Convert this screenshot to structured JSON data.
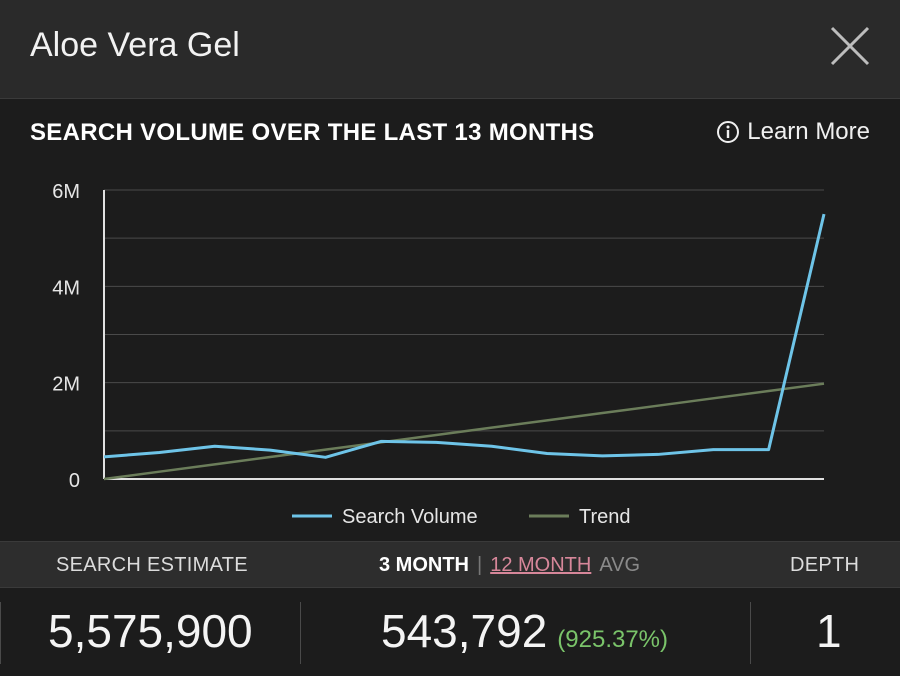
{
  "header": {
    "title": "Aloe Vera Gel"
  },
  "chart_section": {
    "heading": "SEARCH VOLUME OVER THE LAST 13 MONTHS",
    "learn_more": "Learn More"
  },
  "chart_data": {
    "type": "line",
    "x": [
      1,
      2,
      3,
      4,
      5,
      6,
      7,
      8,
      9,
      10,
      11,
      12,
      13,
      14
    ],
    "series": [
      {
        "name": "Search Volume",
        "color": "#6ec4e8",
        "values": [
          460000,
          550000,
          680000,
          600000,
          450000,
          780000,
          760000,
          680000,
          530000,
          480000,
          510000,
          610000,
          610000,
          5500000
        ]
      },
      {
        "name": "Trend",
        "color": "#6b7d5a",
        "values": [
          0,
          152000,
          304000,
          457000,
          609000,
          761000,
          913000,
          1066000,
          1218000,
          1370000,
          1522000,
          1675000,
          1827000,
          1979000
        ]
      }
    ],
    "yticks": [
      "0",
      "2M",
      "4M",
      "6M"
    ],
    "ylim": [
      0,
      6000000
    ],
    "grid": true,
    "legend_position": "bottom"
  },
  "stats": {
    "search_estimate_label": "SEARCH ESTIMATE",
    "period_3": "3 MONTH",
    "period_sep": "|",
    "period_12": "12 MONTH",
    "avg_label": "AVG",
    "depth_label": "DEPTH",
    "search_estimate_value": "5,575,900",
    "avg_value": "543,792",
    "avg_pct": "(925.37%)",
    "depth_value": "1"
  },
  "colors": {
    "accent_link": "#d7879a",
    "positive": "#7ac46a",
    "search_line": "#6ec4e8",
    "trend_line": "#6b7d5a"
  }
}
